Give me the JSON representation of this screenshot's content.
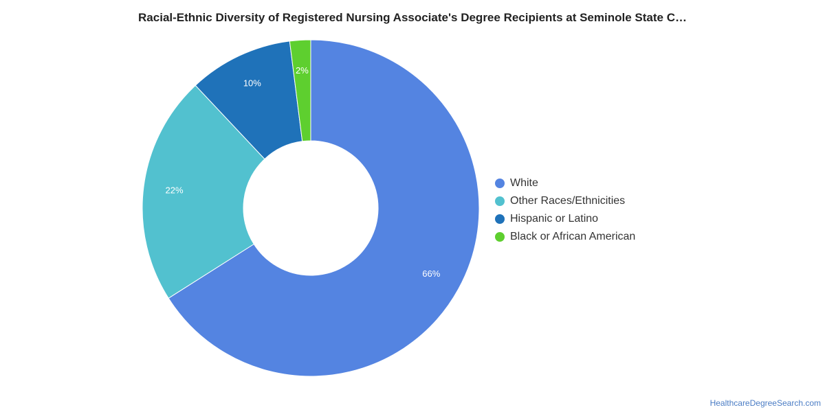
{
  "title": "Racial-Ethnic Diversity of Registered Nursing Associate's Degree Recipients at Seminole State C…",
  "watermark": "HealthcareDegreeSearch.com",
  "chart_data": {
    "type": "pie",
    "style": "donut",
    "legend_position": "right",
    "slices": [
      {
        "name": "White",
        "value": 66,
        "label": "66%",
        "color": "#5484e1"
      },
      {
        "name": "Other Races/Ethnicities",
        "value": 22,
        "label": "22%",
        "color": "#52c1cf"
      },
      {
        "name": "Hispanic or Latino",
        "value": 10,
        "label": "10%",
        "color": "#1f72b9"
      },
      {
        "name": "Black or African American",
        "value": 2,
        "label": "2%",
        "color": "#5ecf2f"
      }
    ]
  }
}
